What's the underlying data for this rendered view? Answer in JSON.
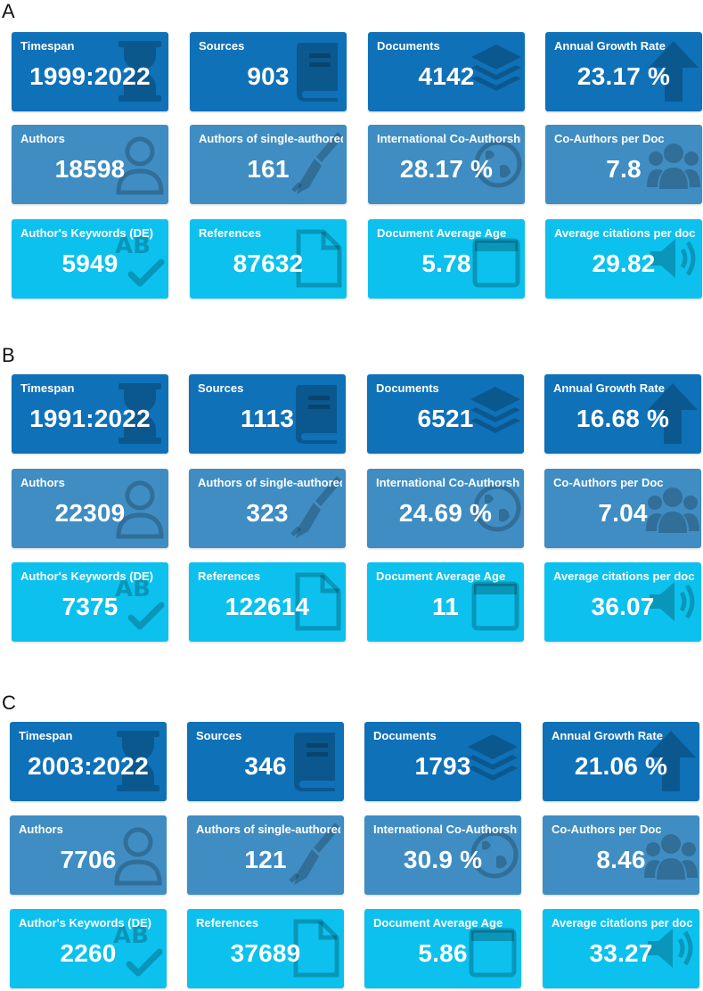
{
  "panels": [
    {
      "letter": "A",
      "cards": [
        {
          "title": "Timespan",
          "value": "1999:2022",
          "icon": "hourglass-icon",
          "tone": "dark"
        },
        {
          "title": "Sources",
          "value": "903",
          "icon": "book-icon",
          "tone": "dark"
        },
        {
          "title": "Documents",
          "value": "4142",
          "icon": "layers-icon",
          "tone": "dark"
        },
        {
          "title": "Annual Growth Rate",
          "value": "23.17 %",
          "icon": "arrow-up-icon",
          "tone": "dark"
        },
        {
          "title": "Authors",
          "value": "18598",
          "icon": "user-icon",
          "tone": "mid"
        },
        {
          "title": "Authors of single-authored",
          "value": "161",
          "icon": "pen-nib-icon",
          "tone": "mid"
        },
        {
          "title": "International Co-Authorship",
          "value": "28.17 %",
          "icon": "globe-icon",
          "tone": "mid"
        },
        {
          "title": "Co-Authors per Doc",
          "value": "7.8",
          "icon": "users-icon",
          "tone": "mid"
        },
        {
          "title": "Author's Keywords (DE)",
          "value": "5949",
          "icon": "spell-check-icon",
          "tone": "light"
        },
        {
          "title": "References",
          "value": "87632",
          "icon": "file-icon",
          "tone": "light"
        },
        {
          "title": "Document Average Age",
          "value": "5.78",
          "icon": "calendar-icon",
          "tone": "light"
        },
        {
          "title": "Average citations per doc",
          "value": "29.82",
          "icon": "volume-icon",
          "tone": "light"
        }
      ]
    },
    {
      "letter": "B",
      "cards": [
        {
          "title": "Timespan",
          "value": "1991:2022",
          "icon": "hourglass-icon",
          "tone": "dark"
        },
        {
          "title": "Sources",
          "value": "1113",
          "icon": "book-icon",
          "tone": "dark"
        },
        {
          "title": "Documents",
          "value": "6521",
          "icon": "layers-icon",
          "tone": "dark"
        },
        {
          "title": "Annual Growth Rate",
          "value": "16.68 %",
          "icon": "arrow-up-icon",
          "tone": "dark"
        },
        {
          "title": "Authors",
          "value": "22309",
          "icon": "user-icon",
          "tone": "mid"
        },
        {
          "title": "Authors of single-authored",
          "value": "323",
          "icon": "pen-nib-icon",
          "tone": "mid"
        },
        {
          "title": "International Co-Authorship",
          "value": "24.69 %",
          "icon": "globe-icon",
          "tone": "mid"
        },
        {
          "title": "Co-Authors per Doc",
          "value": "7.04",
          "icon": "users-icon",
          "tone": "mid"
        },
        {
          "title": "Author's Keywords (DE)",
          "value": "7375",
          "icon": "spell-check-icon",
          "tone": "light"
        },
        {
          "title": "References",
          "value": "122614",
          "icon": "file-icon",
          "tone": "light"
        },
        {
          "title": "Document Average Age",
          "value": "11",
          "icon": "calendar-icon",
          "tone": "light"
        },
        {
          "title": "Average citations per doc",
          "value": "36.07",
          "icon": "volume-icon",
          "tone": "light"
        }
      ]
    },
    {
      "letter": "C",
      "cards": [
        {
          "title": "Timespan",
          "value": "2003:2022",
          "icon": "hourglass-icon",
          "tone": "dark"
        },
        {
          "title": "Sources",
          "value": "346",
          "icon": "book-icon",
          "tone": "dark"
        },
        {
          "title": "Documents",
          "value": "1793",
          "icon": "layers-icon",
          "tone": "dark"
        },
        {
          "title": "Annual Growth Rate",
          "value": "21.06 %",
          "icon": "arrow-up-icon",
          "tone": "dark"
        },
        {
          "title": "Authors",
          "value": "7706",
          "icon": "user-icon",
          "tone": "mid"
        },
        {
          "title": "Authors of single-authored",
          "value": "121",
          "icon": "pen-nib-icon",
          "tone": "mid"
        },
        {
          "title": "International Co-Authorship",
          "value": "30.9 %",
          "icon": "globe-icon",
          "tone": "mid"
        },
        {
          "title": "Co-Authors per Doc",
          "value": "8.46",
          "icon": "users-icon",
          "tone": "mid"
        },
        {
          "title": "Author's Keywords (DE)",
          "value": "2260",
          "icon": "spell-check-icon",
          "tone": "light"
        },
        {
          "title": "References",
          "value": "37689",
          "icon": "file-icon",
          "tone": "light"
        },
        {
          "title": "Document Average Age",
          "value": "5.86",
          "icon": "calendar-icon",
          "tone": "light"
        },
        {
          "title": "Average citations per doc",
          "value": "33.27",
          "icon": "volume-icon",
          "tone": "light"
        }
      ]
    }
  ],
  "colors": {
    "dark": "#0f71b8",
    "mid": "#3f8dc3",
    "light": "#0cc1ee"
  }
}
